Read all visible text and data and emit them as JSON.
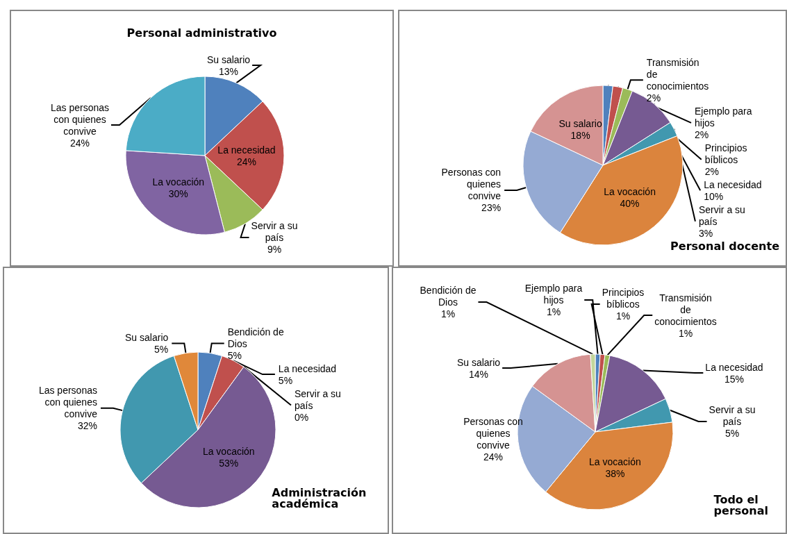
{
  "chart_data": [
    {
      "type": "pie",
      "title": "Personal administrativo",
      "categories": [
        "Su salario",
        "La necesidad",
        "Servir a su país",
        "La vocación",
        "Las personas con quienes convive"
      ],
      "values": [
        13,
        24,
        9,
        30,
        24
      ],
      "value_labels": [
        "13%",
        "24%",
        "9%",
        "30%",
        "24%"
      ],
      "colors": [
        "#4f81bd",
        "#c0504d",
        "#9bbb59",
        "#8064a2",
        "#4bacc6"
      ],
      "legend": false
    },
    {
      "type": "pie",
      "title": "Personal docente",
      "categories": [
        "Ejemplo para hijos",
        "Principios bíblicos",
        "Transmisión de conocimientos",
        "La necesidad",
        "Servir a su país",
        "La vocación",
        "Personas con quienes convive",
        "Su salario"
      ],
      "values": [
        2,
        2,
        2,
        10,
        3,
        40,
        23,
        18
      ],
      "value_labels": [
        "2%",
        "2%",
        "2%",
        "10%",
        "3%",
        "40%",
        "23%",
        "18%"
      ],
      "colors": [
        "#4f81bd",
        "#c0504d",
        "#9bbb59",
        "#765a92",
        "#4198af",
        "#db843d",
        "#95aad3",
        "#d59392"
      ],
      "legend": false
    },
    {
      "type": "pie",
      "title": "Administración académica",
      "categories": [
        "Bendición de Dios",
        "La necesidad",
        "Servir a su país",
        "La vocación",
        "Las personas con quienes convive",
        "Su salario"
      ],
      "values": [
        5,
        5,
        0,
        53,
        32,
        5
      ],
      "value_labels": [
        "5%",
        "5%",
        "0%",
        "53%",
        "32%",
        "5%"
      ],
      "colors": [
        "#4f81bd",
        "#c0504d",
        "#9bbb59",
        "#765a92",
        "#4198af",
        "#e0883a"
      ],
      "legend": false
    },
    {
      "type": "pie",
      "title": "Todo el personal",
      "categories": [
        "Ejemplo para hijos",
        "Principios bíblicos",
        "Transmisión de conocimientos",
        "La necesidad",
        "Servir a su país",
        "La vocación",
        "Personas con quienes convive",
        "Su salario",
        "Bendición de Dios"
      ],
      "values": [
        1,
        1,
        1,
        15,
        5,
        38,
        24,
        14,
        1
      ],
      "value_labels": [
        "1%",
        "1%",
        "1%",
        "15%",
        "5%",
        "38%",
        "24%",
        "14%",
        "1%"
      ],
      "colors": [
        "#4f81bd",
        "#c0504d",
        "#9bbb59",
        "#765a92",
        "#4198af",
        "#db843d",
        "#95aad3",
        "#d59392",
        "#c3d69b"
      ],
      "legend": false
    }
  ]
}
